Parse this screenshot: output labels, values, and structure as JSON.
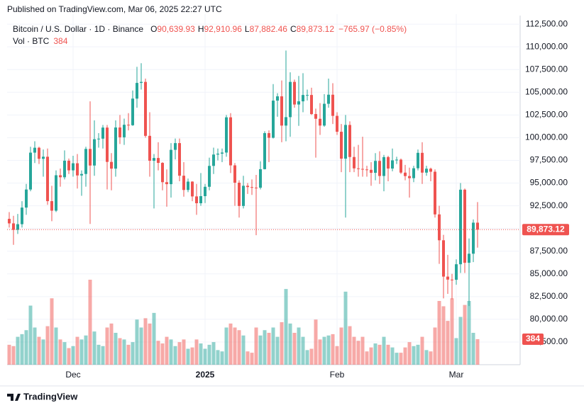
{
  "header": {
    "published": "Published on TradingView.com, Mar 06, 2025 22:27 UTC"
  },
  "footer": {
    "brand": "TradingView"
  },
  "chart_data": {
    "type": "candlestick",
    "title": "Bitcoin / U.S. Dollar · 1D · Binance",
    "legend": [
      {
        "key": "O",
        "label": "90,639.93"
      },
      {
        "key": "H",
        "label": "92,910.96"
      },
      {
        "key": "L",
        "label": "87,882.46"
      },
      {
        "key": "C",
        "label": "89,873.12"
      }
    ],
    "change_label": "−765.97 (−0.85%)",
    "volume_title": "Vol · BTC",
    "volume_label": "384",
    "last_price_label": "89,873.12",
    "up_color": "#26a69a",
    "down_color": "#ef5350",
    "xlim": [
      -0.5,
      120
    ],
    "xticks": [
      {
        "value": 15,
        "label": "Dec"
      },
      {
        "value": 46,
        "label": "2025"
      },
      {
        "value": 77,
        "label": "Feb"
      },
      {
        "value": 105,
        "label": "Mar"
      }
    ],
    "ylim": [
      75000,
      113600
    ],
    "yticks": [
      {
        "value": 112500,
        "label": "112,500.00"
      },
      {
        "value": 110000,
        "label": "110,000.00"
      },
      {
        "value": 107500,
        "label": "107,500.00"
      },
      {
        "value": 105000,
        "label": "105,000.00"
      },
      {
        "value": 102500,
        "label": "102,500.00"
      },
      {
        "value": 100000,
        "label": "100,000.00"
      },
      {
        "value": 97500,
        "label": "97,500.00"
      },
      {
        "value": 95000,
        "label": "95,000.00"
      },
      {
        "value": 92500,
        "label": "92,500.00"
      },
      {
        "value": 90000,
        "label": "90,000.00"
      },
      {
        "value": 87500,
        "label": "87,500.00"
      },
      {
        "value": 85000,
        "label": "85,000.00"
      },
      {
        "value": 82500,
        "label": "82,500.00"
      },
      {
        "value": 80000,
        "label": "80,000.00"
      },
      {
        "value": 77500,
        "label": "77,500.00"
      }
    ],
    "grid": true,
    "open": [
      91060,
      90560,
      89850,
      90470,
      92300,
      94290,
      98350,
      98890,
      97670,
      97900,
      93010,
      91960,
      95860,
      95640,
      97460,
      96400,
      97180,
      95840,
      96000,
      98760,
      96930,
      99830,
      99890,
      101110,
      97330,
      96590,
      101120,
      100040,
      101420,
      101370,
      104300,
      106030,
      106140,
      100200,
      97460,
      97760,
      97220,
      95100,
      94880,
      98660,
      99400,
      95810,
      94240,
      95160,
      93530,
      92780,
      93560,
      94590,
      96890,
      98140,
      98240,
      98360,
      102240,
      96950,
      95040,
      92480,
      94700,
      94560,
      94500,
      94490,
      96530,
      100500,
      99990,
      104080,
      104550,
      101330,
      102260,
      106140,
      103650,
      104000,
      104700,
      104700,
      102600,
      102080,
      101330,
      103730,
      104730,
      102400,
      100650,
      97690,
      101400,
      97870,
      96620,
      96560,
      96500,
      96460,
      96130,
      97440,
      95780,
      97860,
      96600,
      97500,
      97580,
      96150,
      95770,
      95540,
      96630,
      98330,
      96150,
      96580,
      96250,
      91550,
      88700,
      84700,
      84370,
      84350,
      86060,
      94270,
      86220,
      87220,
      90639.93
    ],
    "high": [
      91800,
      91400,
      91600,
      93000,
      94900,
      99000,
      99600,
      99000,
      98700,
      98800,
      94700,
      96400,
      96600,
      98600,
      97700,
      98000,
      98200,
      96400,
      99000,
      104000,
      101900,
      100500,
      101400,
      101400,
      98300,
      101900,
      102500,
      102100,
      102700,
      105200,
      107800,
      108200,
      106500,
      102800,
      98200,
      99500,
      97300,
      96500,
      99400,
      99900,
      99900,
      97300,
      95500,
      95200,
      94900,
      96100,
      94900,
      97800,
      98900,
      98800,
      98800,
      102500,
      102700,
      97200,
      95300,
      95800,
      95000,
      95400,
      95900,
      97400,
      100700,
      100800,
      105900,
      104900,
      106300,
      109590,
      107200,
      106400,
      106800,
      107100,
      105300,
      105500,
      103200,
      103800,
      104800,
      106500,
      106000,
      102800,
      101500,
      102500,
      101800,
      99000,
      99200,
      100100,
      96900,
      97300,
      98300,
      98500,
      98100,
      98000,
      98800,
      97900,
      97700,
      97000,
      96700,
      96900,
      98700,
      99500,
      96900,
      96700,
      96500,
      92500,
      89300,
      87100,
      85000,
      86600,
      95000,
      94400,
      88900,
      91000,
      92910.96
    ],
    "low": [
      90100,
      88200,
      89400,
      90100,
      91500,
      94100,
      97200,
      97100,
      95700,
      92600,
      90800,
      91800,
      94600,
      95400,
      96000,
      95700,
      94400,
      93600,
      94600,
      90500,
      95800,
      98900,
      98800,
      94300,
      94200,
      95700,
      99300,
      99200,
      100800,
      101300,
      103300,
      105300,
      100000,
      95700,
      92200,
      96400,
      94200,
      92400,
      93400,
      97600,
      95200,
      93500,
      94000,
      93000,
      91500,
      92500,
      92800,
      94200,
      96000,
      97500,
      97300,
      97900,
      96100,
      92500,
      91200,
      92200,
      93800,
      93700,
      89260,
      94300,
      96500,
      97300,
      99900,
      102300,
      99500,
      99600,
      100100,
      103300,
      101300,
      102800,
      104100,
      102500,
      97800,
      100300,
      101200,
      103300,
      101500,
      100300,
      96200,
      91200,
      96200,
      96200,
      95700,
      95700,
      95700,
      94700,
      95300,
      94900,
      94100,
      95200,
      96300,
      97100,
      96000,
      95300,
      93400,
      95100,
      96400,
      94900,
      95800,
      95200,
      91200,
      86100,
      82300,
      82800,
      82200,
      83800,
      85100,
      85100,
      81460,
      86300,
      87882.46
    ],
    "close": [
      90560,
      89850,
      90470,
      92300,
      94290,
      98350,
      98890,
      97670,
      97900,
      93010,
      91960,
      95860,
      95640,
      97460,
      96400,
      97180,
      95840,
      96000,
      98760,
      96930,
      99830,
      99890,
      101110,
      97330,
      96590,
      101120,
      100040,
      101420,
      101370,
      104300,
      106030,
      106140,
      100200,
      97460,
      97760,
      97220,
      95100,
      94880,
      98660,
      99400,
      95810,
      94240,
      95160,
      93530,
      92780,
      93560,
      94590,
      96890,
      98140,
      98240,
      98360,
      102240,
      96950,
      95040,
      92480,
      94700,
      94560,
      94500,
      94490,
      96530,
      100500,
      99990,
      104080,
      104550,
      101330,
      102260,
      106140,
      103650,
      104000,
      104700,
      104700,
      102600,
      102080,
      101330,
      103730,
      104730,
      102400,
      100650,
      97690,
      101400,
      97870,
      96620,
      96560,
      96500,
      96460,
      96130,
      97440,
      95780,
      97860,
      96600,
      97500,
      97580,
      96150,
      95770,
      95540,
      96630,
      98330,
      96150,
      96580,
      96250,
      91550,
      88700,
      84700,
      84370,
      84350,
      86060,
      94270,
      86220,
      87220,
      90640,
      89873.12
    ],
    "volume": [
      300,
      280,
      420,
      460,
      520,
      890,
      560,
      420,
      380,
      580,
      1000,
      560,
      380,
      340,
      250,
      280,
      420,
      380,
      440,
      1280,
      500,
      300,
      280,
      560,
      620,
      480,
      400,
      380,
      300,
      340,
      680,
      560,
      700,
      620,
      780,
      360,
      320,
      420,
      380,
      280,
      340,
      380,
      240,
      260,
      380,
      320,
      240,
      300,
      340,
      220,
      200,
      560,
      620,
      560,
      520,
      440,
      200,
      180,
      560,
      440,
      520,
      480,
      560,
      420,
      640,
      1140,
      620,
      480,
      560,
      420,
      220,
      240,
      680,
      380,
      420,
      440,
      460,
      280,
      560,
      1100,
      580,
      420,
      360,
      420,
      200,
      260,
      320,
      300,
      420,
      300,
      260,
      180,
      180,
      260,
      340,
      280,
      300,
      420,
      220,
      200,
      560,
      960,
      880,
      660,
      1000,
      400,
      720,
      900,
      960,
      480,
      384
    ]
  }
}
